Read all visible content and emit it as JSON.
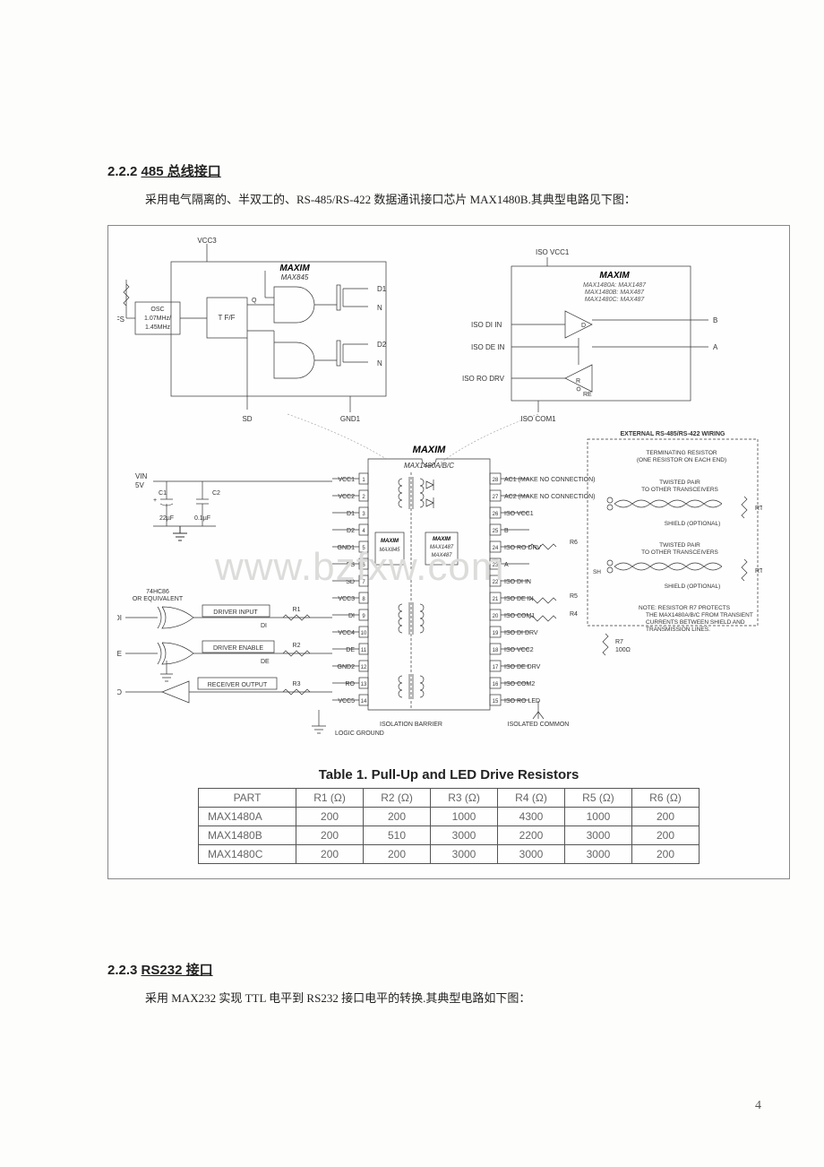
{
  "section1": {
    "number": "2.2.2",
    "title": "485 总线接口",
    "paragraph": "采用电气隔离的、半双工的、RS-485/RS-422 数据通讯接口芯片 MAX1480B.其典型电路见下图："
  },
  "section2": {
    "number": "2.2.3",
    "title": "RS232 接口",
    "paragraph": "采用 MAX232 实现 TTL 电平到 RS232 接口电平的转换.其典型电路如下图："
  },
  "figure": {
    "topLeft": {
      "logo": "MAXIM",
      "chip": "MAX845",
      "vcc": "VCC3",
      "osc1": "OSC",
      "osc2": "1.07MHz/",
      "osc3": "1.45MHz",
      "fs": "FS",
      "tff": "T  F/F",
      "d1": "D1",
      "d2": "D2",
      "n1": "N",
      "n2": "N",
      "sd": "SD",
      "gnd": "GND1"
    },
    "topRight": {
      "logo": "MAXIM",
      "lines1": "MAX1480A: MAX1487",
      "lines2": "MAX1480B: MAX487",
      "lines3": "MAX1480C: MAX487",
      "isoVcc": "ISO VCC1",
      "isoDiIn": "ISO DI IN",
      "isoDeIn": "ISO DE IN",
      "isoRoDrv": "ISO RO DRV",
      "isoCom": "ISO COM1",
      "d": "D",
      "r": "R",
      "re": "RE",
      "a": "A",
      "b": "B"
    },
    "main": {
      "logo": "MAXIM",
      "chip": "MAX1480A/B/C",
      "subLogo1": "MAXIM",
      "subChip1": "MAX845",
      "subLogo2": "MAXIM",
      "subChip2": "MAX1487",
      "subChip2b": "MAX487",
      "vin": "VIN",
      "fivev": "5V",
      "c1": "C1",
      "c1v": "22µF",
      "c2": "C2",
      "c2v": "0.1µF",
      "xor": "74HC86",
      "xor2": "OR EQUIVALENT",
      "diLabel": "DRIVER INPUT",
      "deLabel": "DRIVER ENABLE",
      "roLabel": "RECEIVER OUTPUT",
      "di": "DI",
      "de": "DE",
      "ro": "RO",
      "r1": "R1",
      "r2": "R2",
      "r3": "R3",
      "leftPins": {
        "1": "VCC1",
        "2": "VCC2",
        "3": "D1",
        "4": "D2",
        "5": "GND1",
        "6": "FS",
        "7": "SD",
        "8": "VCC3",
        "9": "DI",
        "10": "VCC4",
        "11": "DE",
        "12": "GND2",
        "13": "RO",
        "14": "VCC5"
      },
      "rightPins": {
        "28": "AC1 (MAKE NO CONNECTION)",
        "27": "AC2 (MAKE NO CONNECTION)",
        "26": "ISO VCC1",
        "25": "B",
        "24": "ISO RO DRV",
        "23": "A",
        "22": "ISO DI IN",
        "21": "ISO DE IN",
        "20": "ISO COM1",
        "19": "ISO DI DRV",
        "18": "ISO VCC2",
        "17": "ISO DE DRV",
        "16": "ISO COM2",
        "15": "ISO RO LED"
      },
      "lg": "LOGIC GROUND",
      "ib": "ISOLATION BARRIER",
      "ic": "ISOLATED COMMON"
    },
    "right": {
      "title": "EXTERNAL RS-485/RS-422 WIRING",
      "term1": "TERMINATING RESISTOR",
      "term2": "(ONE RESISTOR ON EACH END)",
      "tw1": "TWISTED PAIR",
      "tw2": "TO OTHER TRANSCEIVERS",
      "shield": "SHIELD (OPTIONAL)",
      "note1": "NOTE: RESISTOR R7 PROTECTS",
      "note2": "THE MAX1480A/B/C FROM TRANSIENT",
      "note3": "CURRENTS BETWEEN SHIELD AND",
      "note4": "TRANSMISSION LINES.",
      "r4": "R4",
      "r5": "R5",
      "r6": "R6",
      "r7": "R7",
      "r7v": "100Ω",
      "rt": "RT",
      "sh": "SH"
    }
  },
  "table": {
    "title": "Table 1. Pull-Up and LED Drive Resistors",
    "columns": [
      "PART",
      "R1 (Ω)",
      "R2 (Ω)",
      "R3 (Ω)",
      "R4 (Ω)",
      "R5 (Ω)",
      "R6 (Ω)"
    ],
    "rows": [
      [
        "MAX1480A",
        "200",
        "200",
        "1000",
        "4300",
        "1000",
        "200"
      ],
      [
        "MAX1480B",
        "200",
        "510",
        "3000",
        "2200",
        "3000",
        "200"
      ],
      [
        "MAX1480C",
        "200",
        "200",
        "3000",
        "3000",
        "3000",
        "200"
      ]
    ]
  },
  "watermark": "www.bzfxw.com",
  "pageNumber": "4"
}
